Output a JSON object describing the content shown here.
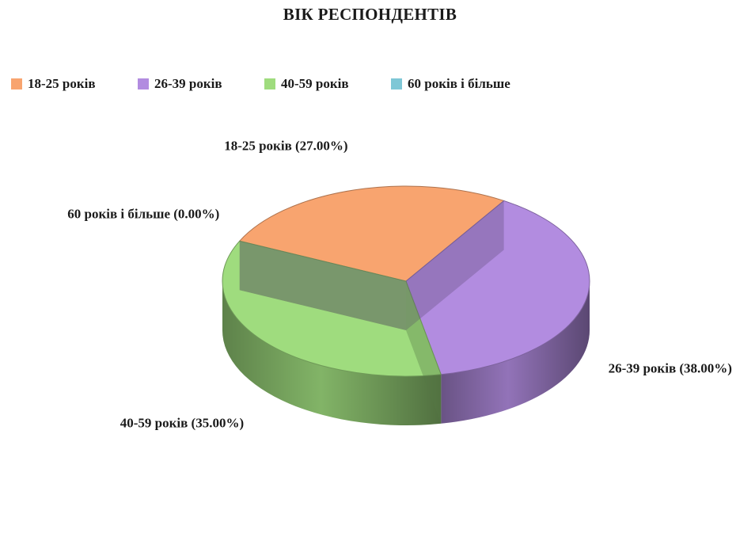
{
  "chart_data": {
    "type": "pie",
    "title": "ВІК РЕСПОНДЕНТІВ",
    "legend_position": "top-left",
    "slices": [
      {
        "label": "18-25 років",
        "value": 27.0,
        "data_label": "18-25 років (27.00%)",
        "color": "#f8a46f"
      },
      {
        "label": "26-39 років",
        "value": 38.0,
        "data_label": "26-39 років (38.00%)",
        "color": "#b28ce0"
      },
      {
        "label": "40-59 років",
        "value": 35.0,
        "data_label": "40-59 років (35.00%)",
        "color": "#9fdc7e"
      },
      {
        "label": "60 років і більше",
        "value": 0.0,
        "data_label": "60 років і більше (0.00%)",
        "color": "#7ec7d6"
      }
    ]
  }
}
